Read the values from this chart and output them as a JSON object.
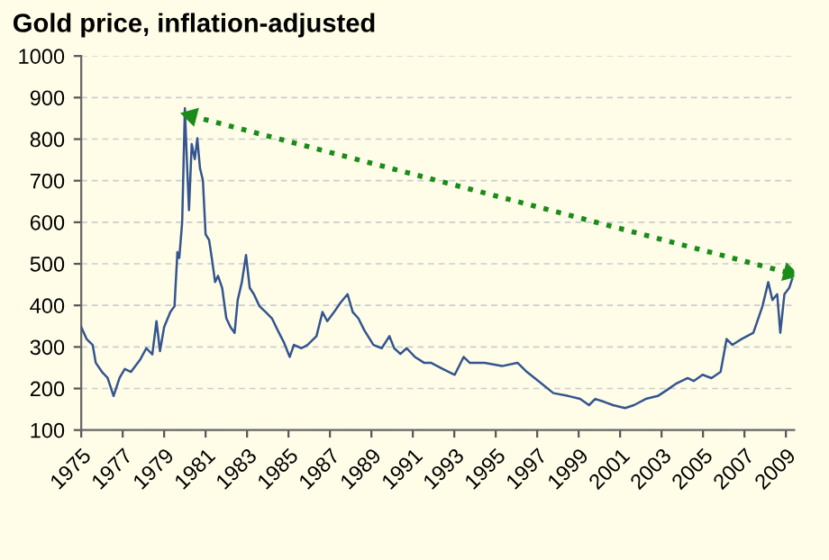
{
  "chart_data": {
    "type": "line",
    "title": "Gold price, inflation-adjusted",
    "series": [
      {
        "color": "#34558f",
        "x": [
          1975.0,
          1975.26,
          1975.55,
          1975.7,
          1976.0,
          1976.27,
          1976.56,
          1976.85,
          1977.1,
          1977.4,
          1977.85,
          1978.14,
          1978.43,
          1978.63,
          1978.8,
          1979.0,
          1979.3,
          1979.5,
          1979.64,
          1979.73,
          1979.87,
          1980.0,
          1980.1,
          1980.2,
          1980.33,
          1980.48,
          1980.6,
          1980.73,
          1980.87,
          1981.0,
          1981.17,
          1981.3,
          1981.46,
          1981.6,
          1981.8,
          1982.0,
          1982.2,
          1982.4,
          1982.55,
          1982.75,
          1982.95,
          1983.13,
          1983.33,
          1983.6,
          1983.9,
          1984.2,
          1984.48,
          1984.77,
          1985.06,
          1985.26,
          1985.63,
          1985.92,
          1986.35,
          1986.64,
          1986.87,
          1987.2,
          1987.5,
          1987.85,
          1988.1,
          1988.37,
          1988.66,
          1989.1,
          1989.5,
          1989.87,
          1990.1,
          1990.4,
          1990.7,
          1991.1,
          1991.54,
          1991.87,
          1992.45,
          1993.02,
          1993.45,
          1993.74,
          1994.46,
          1995.3,
          1996.05,
          1996.5,
          1997.06,
          1997.78,
          1998.5,
          1999.07,
          1999.5,
          1999.8,
          2000.23,
          2000.66,
          2001.24,
          2001.67,
          2002.24,
          2002.82,
          2003.25,
          2003.68,
          2004.26,
          2004.55,
          2004.98,
          2005.41,
          2005.85,
          2006.14,
          2006.42,
          2006.86,
          2007.43,
          2007.87,
          2008.15,
          2008.35,
          2008.58,
          2008.73,
          2008.93,
          2009.16,
          2009.3
        ],
        "values": [
          348,
          319,
          305,
          262,
          240,
          226,
          182,
          226,
          247,
          240,
          270,
          297,
          282,
          362,
          290,
          348,
          384,
          398,
          528,
          514,
          600,
          874,
          745,
          629,
          788,
          752,
          802,
          730,
          701,
          571,
          557,
          514,
          456,
          471,
          442,
          369,
          348,
          334,
          413,
          456,
          521,
          442,
          427,
          398,
          384,
          369,
          340,
          312,
          276,
          305,
          297,
          305,
          326,
          384,
          362,
          384,
          406,
          427,
          384,
          369,
          340,
          305,
          297,
          326,
          297,
          283,
          297,
          276,
          262,
          262,
          247,
          233,
          276,
          262,
          262,
          254,
          262,
          240,
          218,
          189,
          182,
          175,
          160,
          175,
          168,
          160,
          153,
          160,
          175,
          182,
          196,
          211,
          225,
          218,
          233,
          225,
          240,
          319,
          305,
          319,
          334,
          398,
          456,
          413,
          427,
          334,
          427,
          442,
          463
        ]
      },
      {
        "color": "#1a8c1a",
        "line_style": "dotted",
        "marker": "triangle",
        "x": [
          1980.3,
          2009.16
        ],
        "values": [
          856,
          478
        ]
      }
    ],
    "xlim": [
      1975,
      2009.4
    ],
    "xticks": [
      1975,
      1977,
      1979,
      1981,
      1983,
      1985,
      1987,
      1989,
      1991,
      1993,
      1995,
      1997,
      1999,
      2001,
      2003,
      2005,
      2007,
      2009
    ],
    "ylim": [
      100,
      1000
    ],
    "yticks": [
      100,
      200,
      300,
      400,
      500,
      600,
      700,
      800,
      900,
      1000
    ],
    "grid": "y",
    "marker": "none",
    "line_style": "solid"
  }
}
